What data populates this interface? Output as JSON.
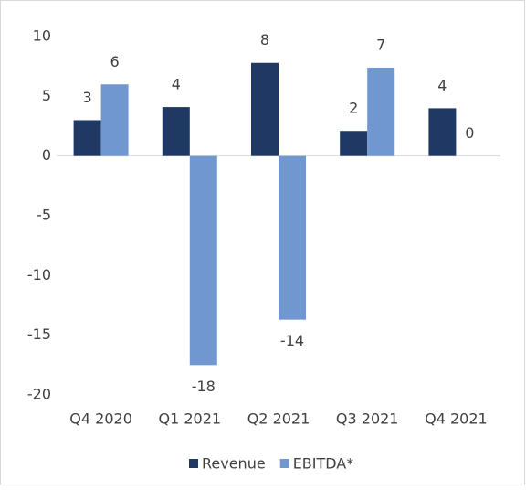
{
  "chart_data": {
    "type": "bar",
    "categories": [
      "Q4 2020",
      "Q1 2021",
      "Q2 2021",
      "Q3 2021",
      "Q4 2021"
    ],
    "series": [
      {
        "name": "Revenue",
        "color": "#203864",
        "values": [
          3.0,
          4.1,
          7.8,
          2.1,
          4.0
        ],
        "value_labels": [
          "3",
          "4",
          "8",
          "2",
          "4"
        ]
      },
      {
        "name": "EBITDA*",
        "color": "#7097d0",
        "values": [
          6.0,
          -17.5,
          -13.7,
          7.4,
          0
        ],
        "value_labels": [
          "6",
          "-18",
          "-14",
          "7",
          "0"
        ]
      }
    ],
    "ylim": [
      -20,
      10
    ],
    "yticks": [
      -20,
      -15,
      -10,
      -5,
      0,
      5,
      10
    ],
    "grid": false,
    "legend": "bottom"
  }
}
